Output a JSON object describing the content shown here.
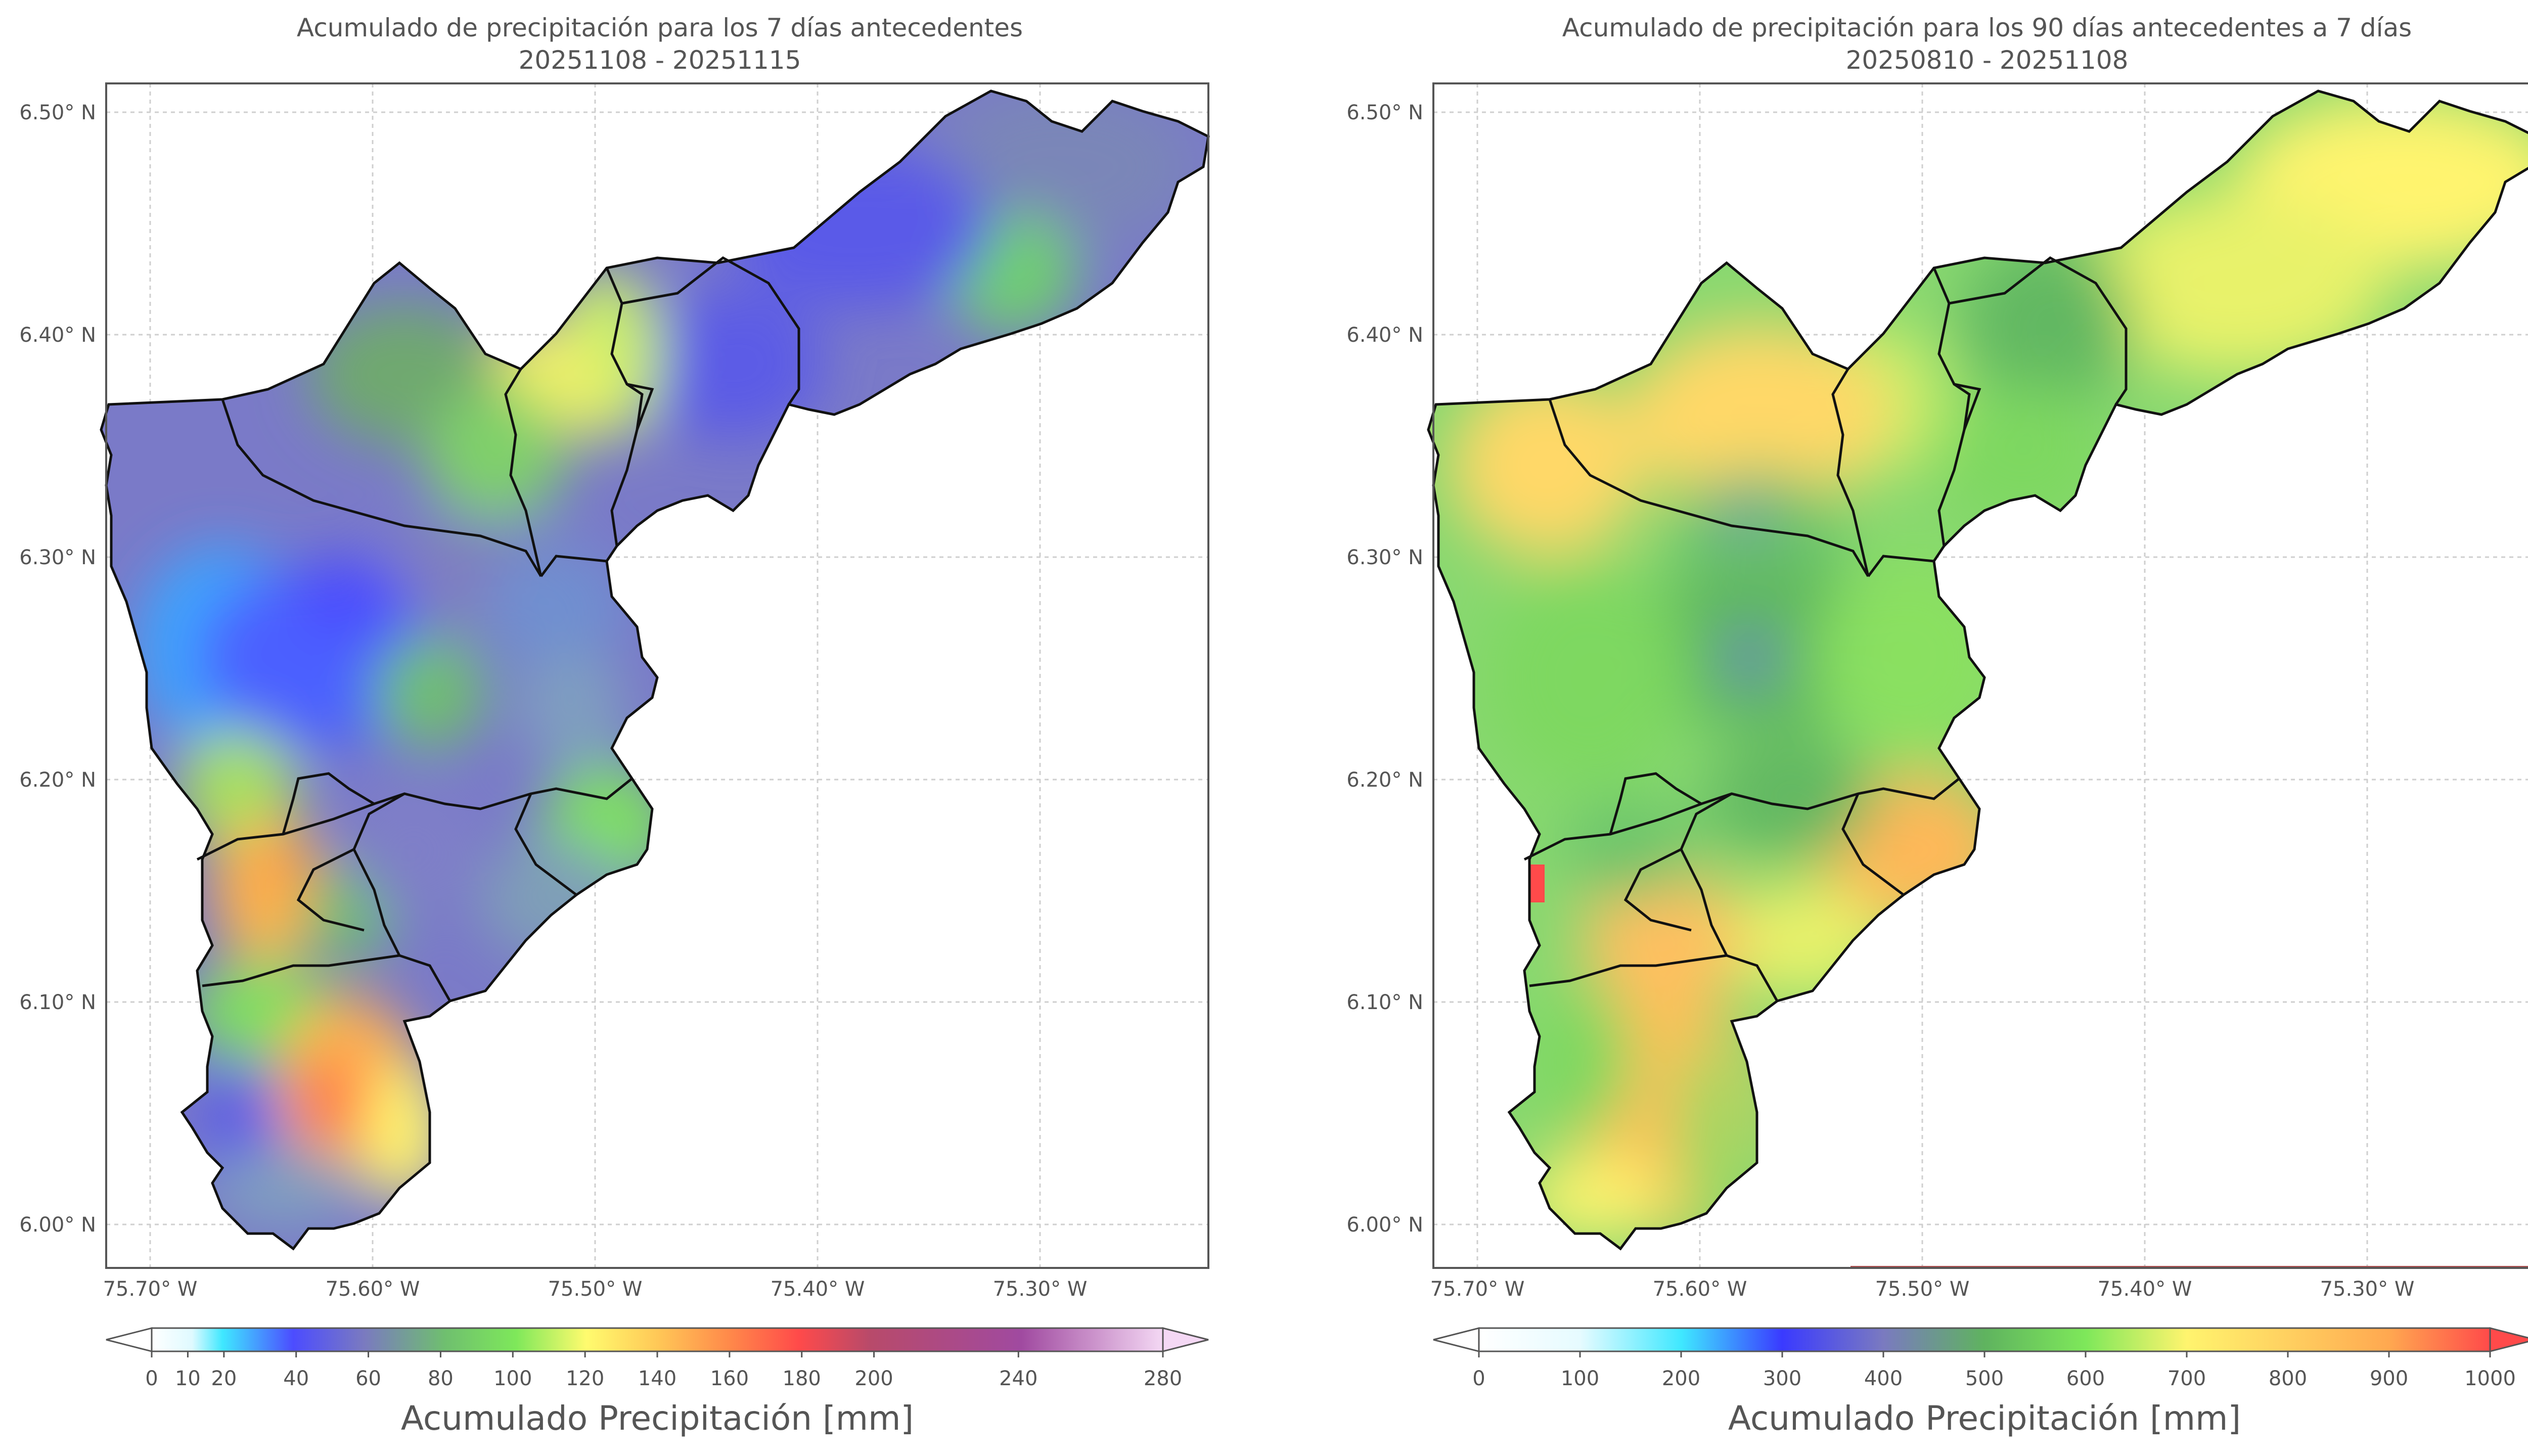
{
  "panels": [
    {
      "id": "left",
      "title_line1": "Acumulado de precipitación para los 7 días antecedentes",
      "title_line2": "20251108 - 20251115",
      "lat_ticks": [
        "6.50° N",
        "6.40° N",
        "6.30° N",
        "6.20° N",
        "6.10° N",
        "6.00° N"
      ],
      "lon_ticks": [
        "75.70° W",
        "75.60° W",
        "75.50° W",
        "75.40° W",
        "75.30° W"
      ],
      "colorbar": {
        "label": "Acumulado Precipitación [mm]",
        "ticks": [
          "0",
          "10",
          "20",
          "40",
          "60",
          "80",
          "100",
          "120",
          "140",
          "160",
          "180",
          "200",
          "240",
          "280"
        ],
        "tick_values": [
          0,
          10,
          20,
          40,
          60,
          80,
          100,
          120,
          140,
          160,
          180,
          200,
          240,
          280
        ],
        "range": [
          0,
          280
        ],
        "colors": [
          "#ffffff",
          "#dffaff",
          "#3fe8ff",
          "#4c4cff",
          "#7a7ac0",
          "#6fbf6f",
          "#7ee85a",
          "#fffb6e",
          "#ffc857",
          "#ff8a4a",
          "#ff4a4a",
          "#b84a6a",
          "#a04aa0",
          "#f4d8f4"
        ]
      }
    },
    {
      "id": "right",
      "title_line1": "Acumulado de precipitación para los 90 días antecedentes a 7 días",
      "title_line2": "20250810 - 20251108",
      "lat_ticks": [
        "6.50° N",
        "6.40° N",
        "6.30° N",
        "6.20° N",
        "6.10° N",
        "6.00° N"
      ],
      "lon_ticks": [
        "75.70° W",
        "75.60° W",
        "75.50° W",
        "75.40° W",
        "75.30° W"
      ],
      "colorbar": {
        "label": "Acumulado Precipitación [mm]",
        "ticks": [
          "0",
          "100",
          "200",
          "300",
          "400",
          "500",
          "600",
          "700",
          "800",
          "900",
          "1000"
        ],
        "tick_values": [
          0,
          100,
          200,
          300,
          400,
          500,
          600,
          700,
          800,
          900,
          1000
        ],
        "range": [
          0,
          1000
        ],
        "colors": [
          "#ffffff",
          "#e6fbff",
          "#3fe8ff",
          "#3a6cff",
          "#4c4cff",
          "#7a7ac0",
          "#5fb35f",
          "#7ee85a",
          "#fff46e",
          "#ffc857",
          "#ff4a4a"
        ]
      }
    }
  ]
}
